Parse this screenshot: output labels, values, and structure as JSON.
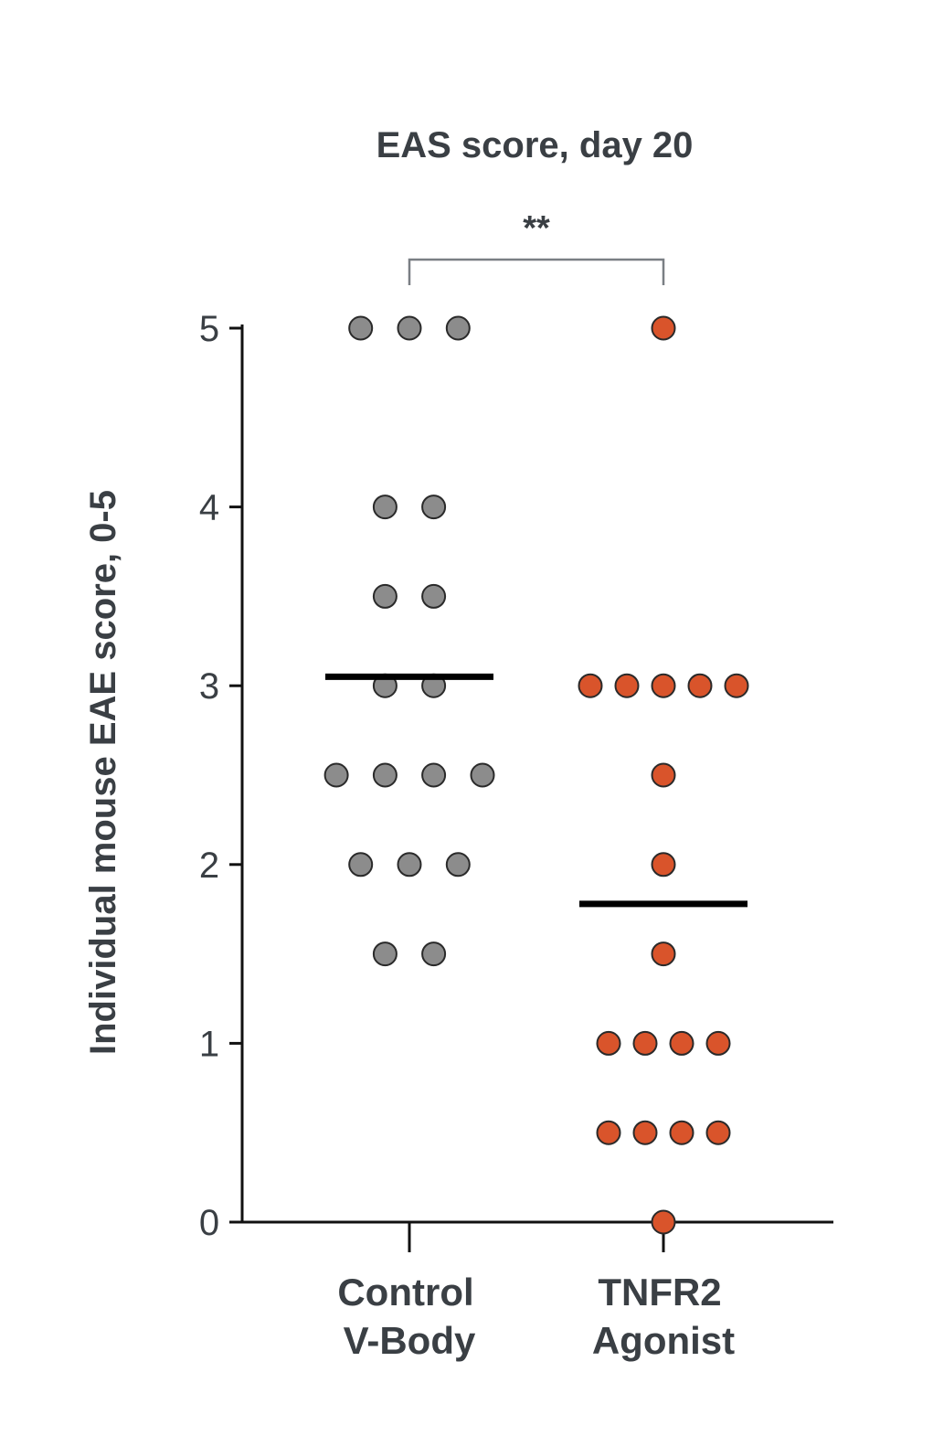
{
  "chart_data": {
    "type": "scatter",
    "title": "EAS score, day 20",
    "ylabel": "Individual mouse EAE score, 0-5",
    "ylim": [
      0,
      5
    ],
    "yticks": [
      "0",
      "1",
      "2",
      "3",
      "4",
      "5"
    ],
    "grid": false,
    "categories": [
      {
        "line1": "Control",
        "line2": "V-Body"
      },
      {
        "line1": "TNFR2",
        "line2": "Agonist"
      }
    ],
    "series": [
      {
        "color": "#8c8c8c",
        "values": [
          5,
          5,
          5,
          4,
          4,
          3.5,
          3.5,
          3,
          3,
          2.5,
          2.5,
          2.5,
          2.5,
          2,
          2,
          2,
          1.5,
          1.5
        ],
        "mean": 3.05
      },
      {
        "color": "#d9542b",
        "values": [
          5,
          3,
          3,
          3,
          3,
          3,
          2.5,
          2,
          1.5,
          1,
          1,
          1,
          1,
          0.5,
          0.5,
          0.5,
          0.5,
          0
        ],
        "mean": 1.78
      }
    ],
    "significance": {
      "label": "**",
      "between": [
        0,
        1
      ]
    }
  }
}
